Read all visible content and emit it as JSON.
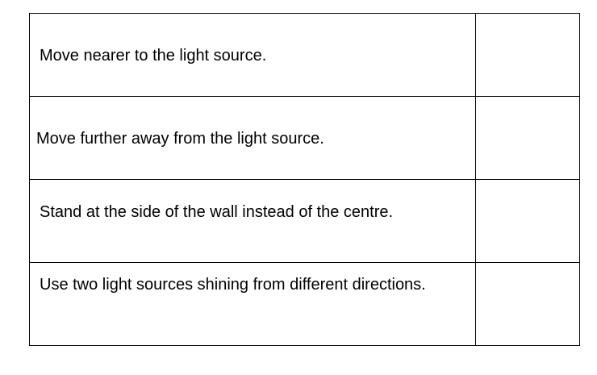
{
  "options": [
    {
      "text": "Move nearer to the light source."
    },
    {
      "text": "Move further away from the light source."
    },
    {
      "text": "Stand at the side of the wall instead of the centre."
    },
    {
      "text": "Use two light sources  shining from different directions."
    }
  ]
}
